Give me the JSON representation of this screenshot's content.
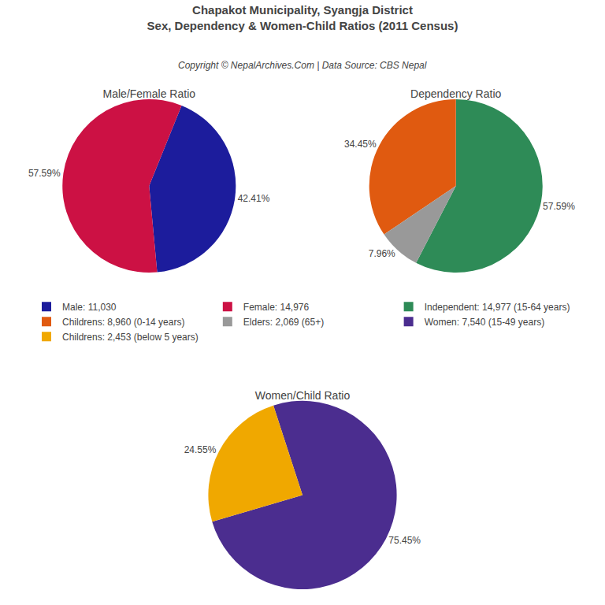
{
  "title": [
    "Chapakot Municipality, Syangja District",
    "Sex, Dependency & Women-Child Ratios (2011 Census)"
  ],
  "subtitle": "Copyright © NepalArchives.Com | Data Source: CBS Nepal",
  "chart_data": [
    {
      "type": "pie",
      "title": "Male/Female Ratio",
      "categories": [
        "Male: 11,030",
        "Female: 14,976"
      ],
      "values": [
        42.41,
        57.59
      ],
      "value_labels": [
        "42.41%",
        "57.59%"
      ],
      "colors": [
        "#1c1c9c",
        "#cc1144"
      ],
      "data_labels": true,
      "legend": "center"
    },
    {
      "type": "pie",
      "title": "Dependency Ratio",
      "categories": [
        "Independent: 14,977 (15-64 years)",
        "Childrens: 8,960 (0-14 years)",
        "Elders: 2,069 (65+)"
      ],
      "values": [
        57.59,
        34.45,
        7.96
      ],
      "value_labels": [
        "57.59%",
        "34.45%",
        "7.96%"
      ],
      "colors": [
        "#2e8b57",
        "#e05a10",
        "#999999"
      ],
      "data_labels": true,
      "legend": "center"
    },
    {
      "type": "pie",
      "title": "Women/Child Ratio",
      "categories": [
        "Women: 7,540 (15-49 years)",
        "Childrens: 2,453 (below 5 years)"
      ],
      "values": [
        75.45,
        24.55
      ],
      "value_labels": [
        "75.45%",
        "24.55%"
      ],
      "colors": [
        "#4b2d8f",
        "#f0a800"
      ],
      "data_labels": true,
      "legend": "center"
    }
  ]
}
